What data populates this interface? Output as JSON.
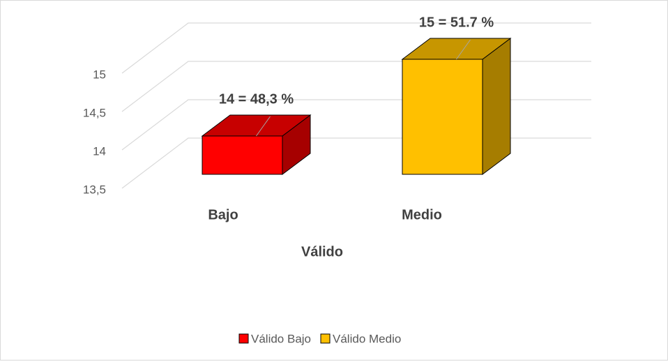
{
  "chart_data": {
    "type": "bar3d",
    "x_label": "Válido",
    "categories": [
      "Bajo",
      "Medio"
    ],
    "series": [
      {
        "name": "Válido Bajo",
        "color": "#ff0000",
        "values": [
          14,
          null
        ],
        "value_labels": [
          "14  = 48,3 %",
          null
        ]
      },
      {
        "name": "Válido Medio",
        "color": "#ffc000",
        "values": [
          null,
          15
        ],
        "value_labels": [
          null,
          "15 = 51.7 %"
        ]
      }
    ],
    "ylim": [
      13.5,
      15
    ],
    "yticks": [
      {
        "value": 13.5,
        "label": "13,5"
      },
      14,
      {
        "value": 14.5,
        "label": "14,5"
      },
      15
    ],
    "grid": true,
    "legend": "bottom"
  }
}
